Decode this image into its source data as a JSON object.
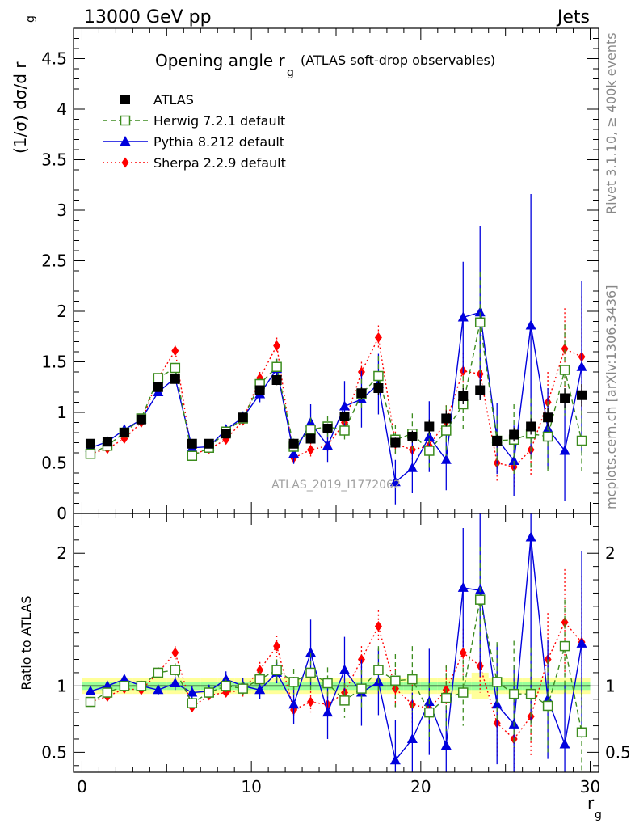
{
  "header": {
    "left": "13000 GeV pp",
    "right": "Jets"
  },
  "side_labels": {
    "rivet": "Rivet 3.1.10, ≥ 400k events",
    "mcplots": "mcplots.cern.ch [arXiv:1306.3436]"
  },
  "colors": {
    "atlas": "#000000",
    "herwig": "#3c8c1e",
    "pythia": "#0000dd",
    "sherpa": "#ff0000",
    "band_yellow": "#ffff99",
    "band_green": "#99ff99"
  },
  "chart_data": [
    {
      "type": "scatter",
      "panel": "main",
      "title_main": "Opening angle r",
      "title_sub": "g",
      "title_extra": "(ATLAS soft-drop observables)",
      "ylabel": "(1/σ) dσ/d r",
      "ylabel_sub": "g",
      "watermark": "ATLAS_2019_I1772062",
      "xlim": [
        -0.5,
        30.5
      ],
      "ylim": [
        0,
        4.8
      ],
      "yticks": [
        "0",
        "0.5",
        "1",
        "1.5",
        "2",
        "2.5",
        "3",
        "3.5",
        "4",
        "4.5"
      ],
      "x": [
        0.5,
        1.5,
        2.5,
        3.5,
        4.5,
        5.5,
        6.5,
        7.5,
        8.5,
        9.5,
        10.5,
        11.5,
        12.5,
        13.5,
        14.5,
        15.5,
        16.5,
        17.5,
        18.5,
        19.5,
        20.5,
        21.5,
        22.5,
        23.5,
        24.5,
        25.5,
        26.5,
        27.5,
        28.5,
        29.5
      ],
      "series": [
        {
          "name": "ATLAS",
          "style": "atlas",
          "values": [
            0.69,
            0.71,
            0.8,
            0.93,
            1.25,
            1.33,
            0.69,
            0.69,
            0.79,
            0.95,
            1.22,
            1.32,
            0.69,
            0.74,
            0.84,
            0.96,
            1.19,
            1.24,
            0.7,
            0.76,
            0.86,
            0.94,
            1.16,
            1.22,
            0.72,
            0.78,
            0.86,
            0.95,
            1.14,
            1.17
          ],
          "errors": [
            0.02,
            0.02,
            0.02,
            0.03,
            0.03,
            0.03,
            0.02,
            0.02,
            0.03,
            0.03,
            0.04,
            0.05,
            0.03,
            0.04,
            0.05,
            0.05,
            0.06,
            0.07,
            0.05,
            0.06,
            0.07,
            0.08,
            0.08,
            0.1,
            0.06,
            0.07,
            0.08,
            0.09,
            0.1,
            0.11
          ]
        },
        {
          "name": "Herwig 7.2.1 default",
          "style": "herwig",
          "values": [
            0.59,
            0.67,
            0.8,
            0.94,
            1.34,
            1.44,
            0.57,
            0.65,
            0.81,
            0.94,
            1.28,
            1.45,
            0.66,
            0.83,
            0.86,
            0.82,
            1.18,
            1.36,
            0.73,
            0.79,
            0.62,
            0.82,
            1.08,
            1.89,
            0.72,
            0.73,
            0.79,
            0.76,
            1.42,
            0.72
          ],
          "errors": [
            0.02,
            0.02,
            0.03,
            0.03,
            0.04,
            0.05,
            0.03,
            0.03,
            0.04,
            0.04,
            0.06,
            0.08,
            0.08,
            0.12,
            0.1,
            0.12,
            0.15,
            0.2,
            0.15,
            0.2,
            0.2,
            0.25,
            0.28,
            0.5,
            0.25,
            0.35,
            0.35,
            0.35,
            0.45,
            0.3
          ]
        },
        {
          "name": "Pythia 8.212 default",
          "style": "pythia",
          "values": [
            0.65,
            0.71,
            0.83,
            0.93,
            1.2,
            1.34,
            0.65,
            0.66,
            0.83,
            0.95,
            1.18,
            1.43,
            0.59,
            0.9,
            0.67,
            1.06,
            1.13,
            1.28,
            0.31,
            0.45,
            0.76,
            0.53,
            1.94,
            1.99,
            0.74,
            0.52,
            1.86,
            0.84,
            0.62,
            1.45
          ],
          "errors": [
            0.02,
            0.02,
            0.03,
            0.03,
            0.04,
            0.05,
            0.04,
            0.04,
            0.05,
            0.06,
            0.08,
            0.1,
            0.1,
            0.18,
            0.16,
            0.25,
            0.28,
            0.3,
            0.22,
            0.25,
            0.35,
            0.3,
            0.55,
            0.85,
            0.35,
            0.35,
            1.3,
            0.4,
            0.5,
            0.85
          ]
        },
        {
          "name": "Sherpa 2.2.9 default",
          "style": "sherpa",
          "values": [
            0.59,
            0.64,
            0.74,
            0.9,
            1.34,
            1.61,
            0.58,
            0.64,
            0.73,
            0.92,
            1.34,
            1.66,
            0.55,
            0.63,
            0.67,
            0.9,
            1.4,
            1.74,
            0.69,
            0.63,
            0.67,
            0.91,
            1.41,
            1.38,
            0.5,
            0.46,
            0.63,
            1.1,
            1.63,
            1.55
          ],
          "errors": [
            0.02,
            0.02,
            0.03,
            0.03,
            0.04,
            0.05,
            0.03,
            0.03,
            0.04,
            0.05,
            0.06,
            0.08,
            0.05,
            0.07,
            0.08,
            0.1,
            0.1,
            0.12,
            0.12,
            0.12,
            0.14,
            0.16,
            0.18,
            0.2,
            0.2,
            0.22,
            0.25,
            0.3,
            0.4,
            0.6
          ]
        }
      ]
    },
    {
      "type": "scatter",
      "panel": "ratio",
      "ylabel": "Ratio to ATLAS",
      "xlabel": "r",
      "xlabel_sub": "g",
      "xlim": [
        -0.5,
        30.5
      ],
      "ylim": [
        0.35,
        2.3
      ],
      "xticks": [
        "0",
        "10",
        "20",
        "30"
      ],
      "yticks": [
        "0.5",
        "1",
        "2"
      ],
      "band_halfwidth_yellow": [
        0.06,
        0.06,
        0.06,
        0.06,
        0.06,
        0.06,
        0.06,
        0.06,
        0.06,
        0.06,
        0.06,
        0.06,
        0.06,
        0.06,
        0.06,
        0.06,
        0.06,
        0.06,
        0.06,
        0.06,
        0.06,
        0.06,
        0.06,
        0.1,
        0.06,
        0.06,
        0.06,
        0.06,
        0.06,
        0.06
      ],
      "band_halfwidth_green": [
        0.03,
        0.03,
        0.03,
        0.03,
        0.03,
        0.03,
        0.03,
        0.03,
        0.03,
        0.03,
        0.03,
        0.03,
        0.03,
        0.03,
        0.03,
        0.03,
        0.03,
        0.03,
        0.03,
        0.03,
        0.03,
        0.03,
        0.03,
        0.03,
        0.03,
        0.03,
        0.03,
        0.03,
        0.03,
        0.03
      ],
      "series": [
        {
          "name": "Herwig 7.2.1 default",
          "style": "herwig",
          "values": [
            0.88,
            0.95,
            1.0,
            1.0,
            1.1,
            1.12,
            0.87,
            0.95,
            1.0,
            0.98,
            1.05,
            1.12,
            1.03,
            1.1,
            1.02,
            0.89,
            0.98,
            1.12,
            1.04,
            1.05,
            0.8,
            0.91,
            0.95,
            1.65,
            1.03,
            0.94,
            0.94,
            0.85,
            1.3,
            0.65
          ],
          "errors": [
            0.02,
            0.02,
            0.03,
            0.03,
            0.04,
            0.05,
            0.04,
            0.04,
            0.05,
            0.05,
            0.06,
            0.08,
            0.1,
            0.15,
            0.12,
            0.13,
            0.14,
            0.18,
            0.2,
            0.25,
            0.22,
            0.25,
            0.25,
            0.4,
            0.3,
            0.4,
            0.35,
            0.35,
            0.35,
            0.3
          ]
        },
        {
          "name": "Pythia 8.212 default",
          "style": "pythia",
          "values": [
            0.96,
            1.0,
            1.05,
            1.0,
            0.97,
            1.02,
            0.95,
            0.96,
            1.05,
            1.0,
            0.97,
            1.1,
            0.86,
            1.25,
            0.8,
            1.12,
            0.95,
            1.03,
            0.44,
            0.6,
            0.88,
            0.55,
            1.74,
            1.72,
            0.86,
            0.71,
            2.12,
            0.9,
            0.56,
            1.32
          ],
          "errors": [
            0.03,
            0.03,
            0.03,
            0.03,
            0.04,
            0.05,
            0.05,
            0.05,
            0.06,
            0.06,
            0.07,
            0.08,
            0.15,
            0.25,
            0.2,
            0.25,
            0.25,
            0.25,
            0.3,
            0.35,
            0.4,
            0.3,
            0.45,
            0.65,
            0.45,
            0.45,
            1.4,
            0.45,
            0.45,
            0.7
          ]
        },
        {
          "name": "Sherpa 2.2.9 default",
          "style": "sherpa",
          "values": [
            0.88,
            0.92,
            0.98,
            0.97,
            1.1,
            1.25,
            0.84,
            0.93,
            0.95,
            0.97,
            1.12,
            1.3,
            0.82,
            0.88,
            0.86,
            0.95,
            1.2,
            1.45,
            0.98,
            0.86,
            0.83,
            0.97,
            1.25,
            1.15,
            0.72,
            0.6,
            0.77,
            1.2,
            1.48,
            1.33
          ],
          "errors": [
            0.02,
            0.02,
            0.03,
            0.03,
            0.04,
            0.05,
            0.03,
            0.03,
            0.04,
            0.05,
            0.06,
            0.08,
            0.06,
            0.08,
            0.09,
            0.1,
            0.1,
            0.12,
            0.15,
            0.15,
            0.15,
            0.18,
            0.18,
            0.2,
            0.25,
            0.28,
            0.3,
            0.35,
            0.4,
            0.5
          ]
        }
      ]
    }
  ]
}
